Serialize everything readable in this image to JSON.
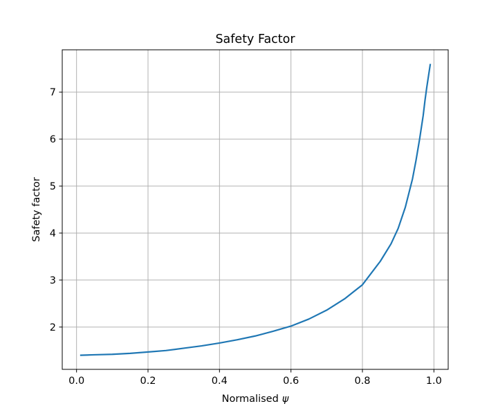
{
  "chart_data": {
    "type": "line",
    "title": "Safety Factor",
    "xlabel": "Normalised ψ",
    "xlabel_prefix": "Normalised",
    "xlabel_symbol": "ψ",
    "ylabel": "Safety factor",
    "xlim": [
      -0.04,
      1.04
    ],
    "ylim": [
      1.1,
      7.9
    ],
    "xticks": [
      0.0,
      0.2,
      0.4,
      0.6,
      0.8,
      1.0
    ],
    "xtick_labels": [
      "0.0",
      "0.2",
      "0.4",
      "0.6",
      "0.8",
      "1.0"
    ],
    "yticks": [
      2,
      3,
      4,
      5,
      6,
      7
    ],
    "ytick_labels": [
      "2",
      "3",
      "4",
      "5",
      "6",
      "7"
    ],
    "grid": true,
    "legend": "none",
    "series": [
      {
        "color": "#1f77b4",
        "x": [
          0.01,
          0.05,
          0.1,
          0.15,
          0.2,
          0.25,
          0.3,
          0.35,
          0.4,
          0.45,
          0.5,
          0.55,
          0.6,
          0.65,
          0.7,
          0.75,
          0.8,
          0.85,
          0.88,
          0.9,
          0.92,
          0.94,
          0.95,
          0.96,
          0.97,
          0.975,
          0.98,
          0.985,
          0.99
        ],
        "y": [
          1.4,
          1.41,
          1.42,
          1.44,
          1.47,
          1.5,
          1.55,
          1.6,
          1.66,
          1.73,
          1.81,
          1.91,
          2.02,
          2.17,
          2.36,
          2.6,
          2.9,
          3.4,
          3.77,
          4.1,
          4.55,
          5.15,
          5.55,
          6.0,
          6.5,
          6.82,
          7.1,
          7.35,
          7.6
        ]
      }
    ]
  }
}
